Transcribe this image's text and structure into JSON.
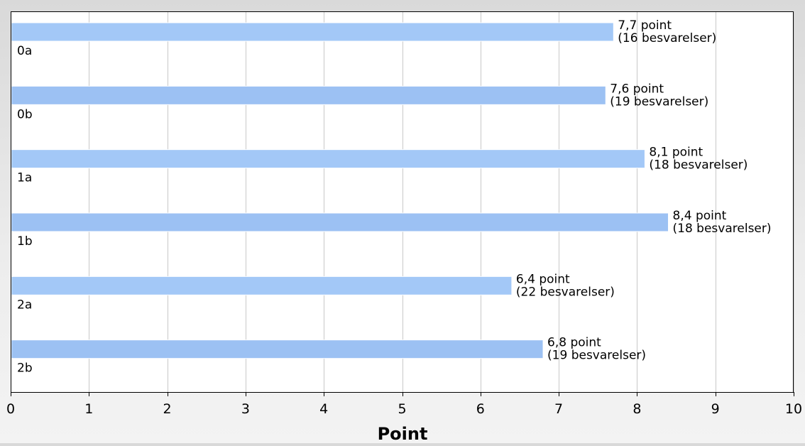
{
  "chart_data": {
    "type": "bar",
    "orientation": "horizontal",
    "title": "",
    "xlabel": "Point",
    "ylabel": "",
    "xlim": [
      0,
      10
    ],
    "x_ticks": [
      0,
      1,
      2,
      3,
      4,
      5,
      6,
      7,
      8,
      9,
      10
    ],
    "grid": true,
    "categories": [
      "0a",
      "0b",
      "1a",
      "1b",
      "2a",
      "2b"
    ],
    "values": [
      7.7,
      7.6,
      8.1,
      8.4,
      6.4,
      6.8
    ],
    "value_labels": [
      "7,7 point",
      "7,6 point",
      "8,1 point",
      "8,4 point",
      "6,4 point",
      "6,8 point"
    ],
    "count_labels": [
      "(16 besvarelser)",
      "(19 besvarelser)",
      "(18 besvarelser)",
      "(18 besvarelser)",
      "(22 besvarelser)",
      "(19 besvarelser)"
    ],
    "colors": {
      "bar_fill": "#a3c8f7",
      "bar_fill_alt": "#9cc1f3",
      "bar_stroke": "#ffffff",
      "plot_background": "#ffffff",
      "grid": "#c8c8c8",
      "axis": "#000000",
      "text": "#000000"
    }
  }
}
